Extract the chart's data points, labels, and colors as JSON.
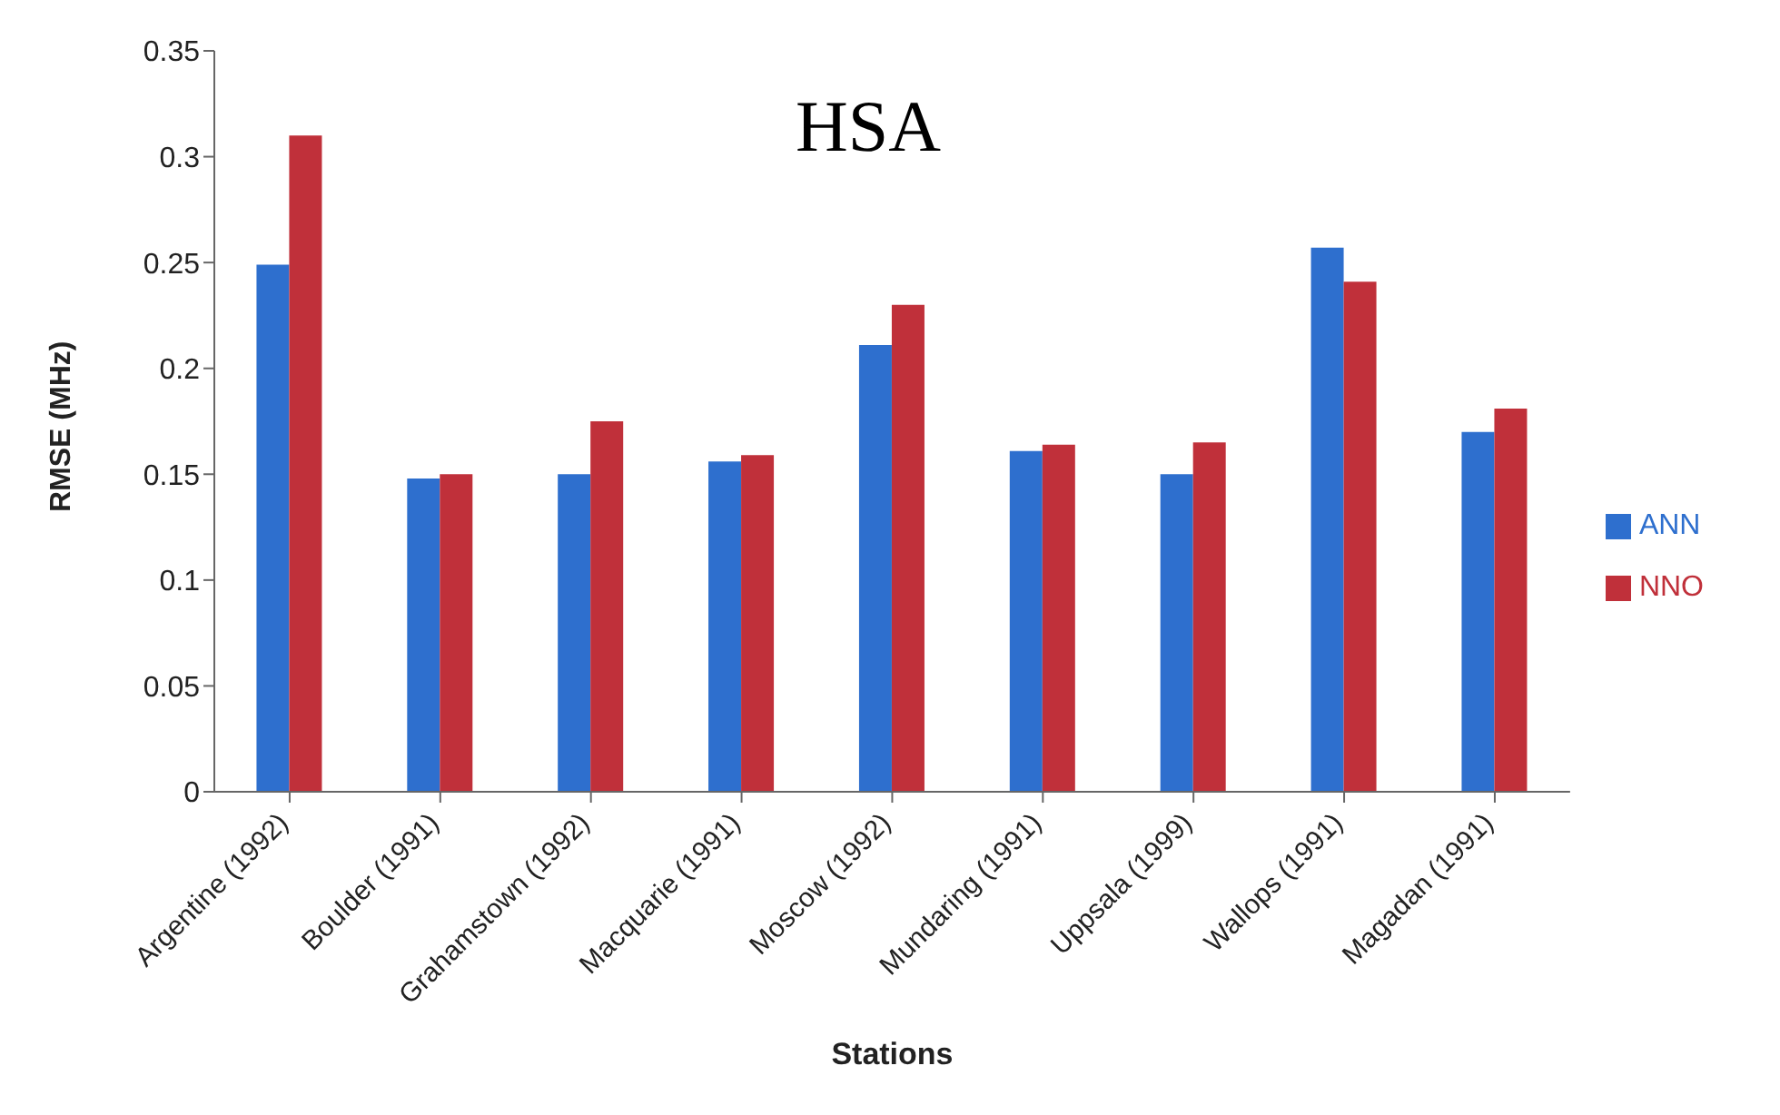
{
  "chart_data": {
    "type": "bar",
    "title": "HSA",
    "xlabel": "Stations",
    "ylabel": "RMSE (MHz)",
    "categories": [
      "Argentine (1992)",
      "Boulder (1991)",
      "Grahamstown (1992)",
      "Macquarie (1991)",
      "Moscow (1992)",
      "Mundaring (1991)",
      "Uppsala (1999)",
      "Wallops (1991)",
      "Magadan (1991)"
    ],
    "series": [
      {
        "name": "ANN",
        "color": "#2e6fce",
        "values": [
          0.249,
          0.148,
          0.15,
          0.156,
          0.211,
          0.161,
          0.15,
          0.257,
          0.17
        ]
      },
      {
        "name": "NNO",
        "color": "#c0303a",
        "values": [
          0.31,
          0.15,
          0.175,
          0.159,
          0.23,
          0.164,
          0.165,
          0.241,
          0.181
        ]
      }
    ],
    "ylim": [
      0,
      0.35
    ],
    "yticks": [
      0,
      0.05,
      0.1,
      0.15,
      0.2,
      0.25,
      0.3,
      0.35
    ],
    "grid": false,
    "legend": "right"
  }
}
